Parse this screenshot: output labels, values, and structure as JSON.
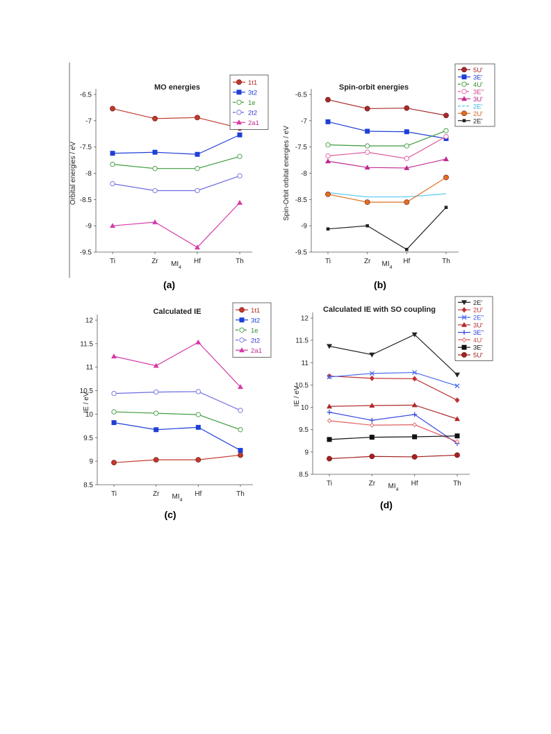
{
  "chart_data": [
    {
      "panel": "(a)",
      "type": "line",
      "title": "MO energies",
      "xlabel": "MI",
      "xlabel_sub": "4",
      "ylabel": "Orbital energies / eV",
      "categories": [
        "Ti",
        "Zr",
        "Hf",
        "Th"
      ],
      "ylim": [
        -9.5,
        -6.5
      ],
      "yticks": [
        -6.5,
        -7,
        -7.5,
        -8,
        -8.5,
        -9,
        -9.5
      ],
      "ytick_labels": [
        "-6.5",
        "-7",
        "-7.5",
        "-8",
        "-8.5",
        "-9",
        "-9.5"
      ],
      "legend_position": "top-right",
      "series": [
        {
          "name": "1t1",
          "color": "#c0392b",
          "label_color": "#b0281e",
          "marker": "circle",
          "values": [
            -6.77,
            -6.96,
            -6.94,
            -7.14
          ]
        },
        {
          "name": "3t2",
          "color": "#1f3fd6",
          "label_color": "#1f3fd6",
          "marker": "square",
          "values": [
            -7.62,
            -7.6,
            -7.64,
            -7.27
          ]
        },
        {
          "name": "1e",
          "color": "#3a9a3a",
          "label_color": "#2f8f2f",
          "marker": "open-circle",
          "values": [
            -7.83,
            -7.91,
            -7.91,
            -7.68
          ]
        },
        {
          "name": "2t2",
          "color": "#6b6be0",
          "label_color": "#3c3cd0",
          "marker": "open-circle",
          "values": [
            -8.2,
            -8.33,
            -8.33,
            -8.05
          ]
        },
        {
          "name": "2a1",
          "color": "#d63ba6",
          "label_color": "#c02a90",
          "marker": "triangle",
          "values": [
            -9.0,
            -8.93,
            -9.41,
            -8.56
          ]
        }
      ]
    },
    {
      "panel": "(b)",
      "type": "line",
      "title": "Spin-orbit energies",
      "xlabel": "MI",
      "xlabel_sub": "4",
      "ylabel": "Spin-Orbit orbital energies / eV",
      "categories": [
        "Ti",
        "Zr",
        "Hf",
        "Th"
      ],
      "ylim": [
        -9.5,
        -6.5
      ],
      "yticks": [
        -6.5,
        -7,
        -7.5,
        -8,
        -8.5,
        -9,
        -9.5
      ],
      "ytick_labels": [
        "-6.5",
        "-7",
        "-7.5",
        "-8",
        "-8.5",
        "-9",
        "-9.5"
      ],
      "legend_position": "top-right",
      "series": [
        {
          "name": "5U'",
          "color": "#a52a2a",
          "label_color": "#a52a2a",
          "marker": "circle",
          "values": [
            -6.6,
            -6.77,
            -6.76,
            -6.9
          ]
        },
        {
          "name": "3E'",
          "color": "#1f3fd6",
          "label_color": "#1f3fd6",
          "marker": "square",
          "values": [
            -7.02,
            -7.2,
            -7.21,
            -7.34
          ]
        },
        {
          "name": "4U'",
          "color": "#3a9a3a",
          "label_color": "#2f8f2f",
          "marker": "open-circle",
          "values": [
            -7.46,
            -7.48,
            -7.48,
            -7.19
          ]
        },
        {
          "name": "3E''",
          "color": "#e05aa0",
          "label_color": "#d0408c",
          "marker": "open-circle",
          "values": [
            -7.67,
            -7.6,
            -7.72,
            -7.3
          ]
        },
        {
          "name": "3U'",
          "color": "#c02a90",
          "label_color": "#b01f80",
          "marker": "triangle",
          "values": [
            -7.77,
            -7.89,
            -7.9,
            -7.73
          ]
        },
        {
          "name": "2E'",
          "color": "#55c8ee",
          "label_color": "#3ab4e0",
          "marker": "none",
          "values": [
            -8.37,
            -8.45,
            -8.45,
            -8.39
          ]
        },
        {
          "name": "2U'",
          "color": "#e07020",
          "label_color": "#d8601a",
          "marker": "circle",
          "values": [
            -8.4,
            -8.55,
            -8.55,
            -8.08
          ]
        },
        {
          "name": "2E'",
          "color": "#222222",
          "label_color": "#222222",
          "marker": "filled-small",
          "values": [
            -9.06,
            -9.0,
            -9.45,
            -8.65
          ]
        }
      ]
    },
    {
      "panel": "(c)",
      "type": "line",
      "title": "Calculated IE",
      "xlabel": "MI",
      "xlabel_sub": "4",
      "ylabel": "IE / eV",
      "categories": [
        "Ti",
        "Zr",
        "Hf",
        "Th"
      ],
      "ylim": [
        8.5,
        12
      ],
      "yticks": [
        12,
        11.5,
        11,
        10.5,
        10,
        9.5,
        9,
        8.5
      ],
      "ytick_labels": [
        "12",
        "11.5",
        "11",
        "10.5",
        "10",
        "9.5",
        "9",
        "8.5"
      ],
      "legend_position": "top-right",
      "series": [
        {
          "name": "1t1",
          "color": "#c0392b",
          "label_color": "#b0281e",
          "marker": "circle",
          "values": [
            8.97,
            9.03,
            9.03,
            9.13
          ]
        },
        {
          "name": "3t2",
          "color": "#1f3fd6",
          "label_color": "#1f3fd6",
          "marker": "square",
          "values": [
            9.82,
            9.67,
            9.72,
            9.23
          ]
        },
        {
          "name": "1e",
          "color": "#3a9a3a",
          "label_color": "#2f8f2f",
          "marker": "open-circle",
          "values": [
            10.05,
            10.02,
            9.99,
            9.67
          ]
        },
        {
          "name": "2t2",
          "color": "#6b6be0",
          "label_color": "#3c3cd0",
          "marker": "open-circle",
          "values": [
            10.44,
            10.47,
            10.48,
            10.08
          ]
        },
        {
          "name": "2a1",
          "color": "#d63ba6",
          "label_color": "#c02a90",
          "marker": "triangle",
          "values": [
            11.23,
            11.03,
            11.53,
            10.58
          ]
        }
      ]
    },
    {
      "panel": "(d)",
      "type": "line",
      "title": "Calculated IE with SO coupling",
      "xlabel": "MI",
      "xlabel_sub": "4",
      "ylabel": "IE / eV",
      "categories": [
        "Ti",
        "Zr",
        "Hf",
        "Th"
      ],
      "ylim": [
        8.5,
        12
      ],
      "yticks": [
        12,
        11.5,
        11,
        10.5,
        10,
        9.5,
        9,
        8.5
      ],
      "ytick_labels": [
        "12",
        "11.5",
        "11",
        "10.5",
        "10",
        "9.5",
        "9",
        "8.5"
      ],
      "legend_position": "top-right",
      "series": [
        {
          "name": "2E'",
          "color": "#222222",
          "label_color": "#222222",
          "marker": "down-triangle",
          "values": [
            11.37,
            11.18,
            11.63,
            10.73
          ]
        },
        {
          "name": "2U'",
          "color": "#c03030",
          "label_color": "#c03030",
          "marker": "diamond",
          "values": [
            10.7,
            10.65,
            10.64,
            10.16
          ]
        },
        {
          "name": "2E''",
          "color": "#4a6af0",
          "label_color": "#3a5ae8",
          "marker": "cross",
          "values": [
            10.68,
            10.76,
            10.78,
            10.48
          ]
        },
        {
          "name": "3U'",
          "color": "#b02828",
          "label_color": "#b02828",
          "marker": "triangle",
          "values": [
            10.02,
            10.04,
            10.05,
            9.74
          ]
        },
        {
          "name": "3E''",
          "color": "#3a4ae0",
          "label_color": "#2a3ad8",
          "marker": "plus",
          "values": [
            9.89,
            9.71,
            9.84,
            9.19
          ]
        },
        {
          "name": "4U'",
          "color": "#e06060",
          "label_color": "#d05050",
          "marker": "small-diamond",
          "values": [
            9.7,
            9.6,
            9.61,
            9.23
          ]
        },
        {
          "name": "3E'",
          "color": "#111111",
          "label_color": "#111111",
          "marker": "square",
          "values": [
            9.28,
            9.33,
            9.34,
            9.36
          ]
        },
        {
          "name": "5U'",
          "color": "#a52020",
          "label_color": "#a52020",
          "marker": "circle",
          "values": [
            8.85,
            8.9,
            8.89,
            8.93
          ]
        }
      ]
    }
  ]
}
